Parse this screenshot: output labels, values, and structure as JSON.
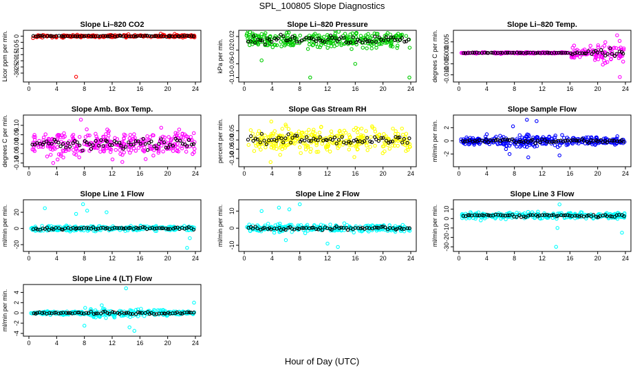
{
  "main_title": "SPL_100805  Slope Diagnostics",
  "xlabel": "Hour of Day (UTC)",
  "chart_data": [
    {
      "type": "scatter",
      "title": "Slope Li–820 CO2",
      "ylabel": "Licor ppm per min.",
      "color": "#ff0000",
      "xlim": [
        0,
        24
      ],
      "xticks": [
        "0",
        "4",
        "8",
        "12",
        "16",
        "20",
        "24"
      ],
      "ylim": [
        -35,
        2.5
      ],
      "yticks": [
        0,
        -5,
        -10,
        -15,
        -20,
        -25,
        -30
      ],
      "ytick_labels": [
        "0",
        "-5",
        "-10",
        "-15",
        "-20",
        "-25",
        "-30"
      ],
      "center": 0,
      "spread": [
        1,
        1,
        1,
        1,
        1,
        1
      ],
      "outliers": [
        [
          6.8,
          -33
        ],
        [
          19,
          2
        ],
        [
          21,
          1.8
        ],
        [
          0.6,
          -1.6
        ]
      ],
      "n": 260,
      "seed": 11
    },
    {
      "type": "scatter",
      "title": "Slope Li–820 Pressure",
      "ylabel": "kPa per min.",
      "color": "#00cc00",
      "xlim": [
        0,
        24
      ],
      "xticks": [
        "0",
        "4",
        "8",
        "12",
        "16",
        "20",
        "24"
      ],
      "ylim": [
        -0.105,
        0.03
      ],
      "yticks": [
        0.02,
        -0.02,
        -0.06,
        -0.1
      ],
      "ytick_labels": [
        "0.02",
        "-0.02",
        "-0.06",
        "-0.10"
      ],
      "center": 0.01,
      "spread": [
        0.022,
        0.022,
        0.022,
        0.022,
        0.022,
        0.022
      ],
      "outliers": [
        [
          9.5,
          -0.1
        ],
        [
          16,
          -0.06
        ],
        [
          23.8,
          -0.1
        ],
        [
          2.5,
          -0.05
        ]
      ],
      "n": 300,
      "seed": 23
    },
    {
      "type": "scatter",
      "title": "Slope Li–820 Temp.",
      "ylabel": "degrees C per min.",
      "color": "#ff00ff",
      "xlim": [
        0,
        24
      ],
      "xticks": [
        "0",
        "4",
        "8",
        "12",
        "16",
        "20",
        "24"
      ],
      "ylim": [
        -0.012,
        0.009
      ],
      "yticks": [
        0.005,
        0,
        -0.005,
        -0.01
      ],
      "ytick_labels": [
        "0.005",
        "0.000",
        "-0.005",
        "-0.010"
      ],
      "center": 0,
      "spread": [
        0.0003,
        0.0003,
        0.0003,
        0.0003,
        0.0025,
        0.005
      ],
      "outliers": [
        [
          23.2,
          -0.011
        ],
        [
          22.8,
          0.008
        ]
      ],
      "n": 300,
      "seed": 37
    },
    {
      "type": "scatter",
      "title": "Slope Amb. Box Temp.",
      "ylabel": "degrees C per min.",
      "color": "#ff00ff",
      "xlim": [
        0,
        24
      ],
      "xticks": [
        "0",
        "4",
        "8",
        "12",
        "16",
        "20",
        "24"
      ],
      "ylim": [
        -0.105,
        0.14
      ],
      "yticks": [
        0.1,
        0.05,
        0,
        -0.05,
        -0.1
      ],
      "ytick_labels": [
        "0.10",
        "0.05",
        "0.00",
        "-0.05",
        "-0.10"
      ],
      "center": 0,
      "spread": [
        0.06,
        0.06,
        0.06,
        0.06,
        0.06,
        0.06
      ],
      "outliers": [
        [
          7.5,
          0.13
        ],
        [
          3.5,
          -0.1
        ]
      ],
      "n": 320,
      "seed": 41
    },
    {
      "type": "scatter",
      "title": "Slope Gas Stream RH",
      "ylabel": "percent per min.",
      "color": "#ffff00",
      "xlim": [
        0,
        24
      ],
      "xticks": [
        "0",
        "4",
        "8",
        "12",
        "16",
        "20",
        "24"
      ],
      "ylim": [
        -0.13,
        0.12
      ],
      "yticks": [
        0.05,
        0,
        -0.05,
        -0.1
      ],
      "ytick_labels": [
        "0.05",
        "0.00",
        "-0.05",
        "-0.10"
      ],
      "center": 0,
      "spread": [
        0.06,
        0.06,
        0.06,
        0.06,
        0.06,
        0.06
      ],
      "outliers": [
        [
          3.8,
          -0.12
        ],
        [
          3.9,
          0.1
        ]
      ],
      "n": 320,
      "seed": 53
    },
    {
      "type": "scatter",
      "title": "Slope Sample Flow",
      "ylabel": "ml/min per min.",
      "color": "#0000ff",
      "xlim": [
        0,
        24
      ],
      "xticks": [
        "0",
        "4",
        "8",
        "12",
        "16",
        "20",
        "24"
      ],
      "ylim": [
        -3.5,
        3.5
      ],
      "yticks": [
        2,
        0,
        -2
      ],
      "ytick_labels": [
        "2",
        "0",
        "-2"
      ],
      "center": 0,
      "spread": [
        0.5,
        0.8,
        0.8,
        0.8,
        0.6,
        0.5
      ],
      "outliers": [
        [
          7.8,
          2.2
        ],
        [
          9.8,
          3.2
        ],
        [
          11.2,
          3
        ],
        [
          10,
          -2.5
        ],
        [
          7.3,
          -2
        ],
        [
          14.5,
          -2.2
        ]
      ],
      "n": 320,
      "seed": 67
    },
    {
      "type": "scatter",
      "title": "Slope Line 1 Flow",
      "ylabel": "ml/min per min.",
      "color": "#00ffff",
      "xlim": [
        0,
        24
      ],
      "xticks": [
        "0",
        "4",
        "8",
        "12",
        "16",
        "20",
        "24"
      ],
      "ylim": [
        -25,
        32
      ],
      "yticks": [
        20,
        0,
        -20
      ],
      "ytick_labels": [
        "20",
        "0",
        "-20"
      ],
      "center": 0,
      "spread": [
        3,
        3,
        3,
        3,
        3,
        3
      ],
      "outliers": [
        [
          7.8,
          30
        ],
        [
          2.3,
          25
        ],
        [
          8.4,
          22
        ],
        [
          6.8,
          18
        ],
        [
          11.2,
          20
        ],
        [
          23.2,
          -12
        ],
        [
          22.8,
          -24
        ]
      ],
      "n": 280,
      "seed": 71
    },
    {
      "type": "scatter",
      "title": "Slope Line 2 Flow",
      "ylabel": "ml/min per min.",
      "color": "#00ffff",
      "xlim": [
        0,
        24
      ],
      "xticks": [
        "0",
        "4",
        "8",
        "12",
        "16",
        "20",
        "24"
      ],
      "ylim": [
        -12,
        15
      ],
      "yticks": [
        10,
        0,
        -10
      ],
      "ytick_labels": [
        "10",
        "0",
        "-10"
      ],
      "center": 0,
      "spread": [
        2,
        2,
        2,
        2,
        2,
        2
      ],
      "outliers": [
        [
          8,
          14
        ],
        [
          5,
          12
        ],
        [
          6.5,
          11
        ],
        [
          2.5,
          10
        ],
        [
          13.5,
          -11
        ],
        [
          6,
          -7
        ],
        [
          12,
          -9
        ]
      ],
      "n": 280,
      "seed": 83
    },
    {
      "type": "scatter",
      "title": "Slope Line 3 Flow",
      "ylabel": "ml/min per min.",
      "color": "#00ffff",
      "xlim": [
        0,
        24
      ],
      "xticks": [
        "0",
        "4",
        "8",
        "12",
        "16",
        "20",
        "24"
      ],
      "ylim": [
        -32,
        17
      ],
      "yticks": [
        10,
        0,
        -10,
        -20,
        -30
      ],
      "ytick_labels": [
        "10",
        "0",
        "-10",
        "-20",
        "-30"
      ],
      "center": 3,
      "spread": [
        3,
        3,
        3,
        3,
        3,
        3
      ],
      "outliers": [
        [
          14.5,
          15
        ],
        [
          14,
          -30
        ],
        [
          23.5,
          -15
        ],
        [
          14.2,
          -10
        ]
      ],
      "n": 300,
      "seed": 97
    },
    {
      "type": "scatter",
      "title": "Slope Line 4 (LT) Flow",
      "ylabel": "ml/min per min.",
      "color": "#00ffff",
      "xlim": [
        0,
        24
      ],
      "xticks": [
        "0",
        "4",
        "8",
        "12",
        "16",
        "20",
        "24"
      ],
      "ylim": [
        -4,
        5
      ],
      "yticks": [
        4,
        2,
        0,
        -2,
        -4
      ],
      "ytick_labels": [
        "4",
        "2",
        "0",
        "-2",
        "-4"
      ],
      "center": 0,
      "spread": [
        0.3,
        0.3,
        0.8,
        0.8,
        0.6,
        0.4
      ],
      "outliers": [
        [
          14,
          4.8
        ],
        [
          15.2,
          -3.5
        ],
        [
          14.5,
          -2.8
        ],
        [
          8,
          -2.5
        ],
        [
          10.5,
          1.5
        ],
        [
          23.8,
          2
        ]
      ],
      "n": 300,
      "seed": 101
    }
  ]
}
